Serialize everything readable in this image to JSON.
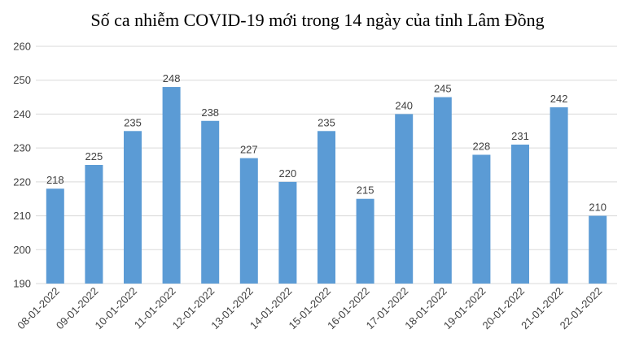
{
  "chart_data": {
    "type": "bar",
    "title": "Số ca nhiễm COVID-19 mới trong 14 ngày của tỉnh Lâm Đồng",
    "xlabel": "",
    "ylabel": "",
    "categories": [
      "08-01-2022",
      "09-01-2022",
      "10-01-2022",
      "11-01-2022",
      "12-01-2022",
      "13-01-2022",
      "14-01-2022",
      "15-01-2022",
      "16-01-2022",
      "17-01-2022",
      "18-01-2022",
      "19-01-2022",
      "20-01-2022",
      "21-01-2022",
      "22-01-2022"
    ],
    "values": [
      218,
      225,
      235,
      248,
      238,
      227,
      220,
      235,
      215,
      240,
      245,
      228,
      231,
      242,
      210
    ],
    "ylim": [
      190,
      260
    ],
    "yticks": [
      190,
      200,
      210,
      220,
      230,
      240,
      250,
      260
    ],
    "grid": true,
    "data_labels": true,
    "bar_color": "#5b9bd5",
    "grid_color": "#d9d9d9"
  }
}
